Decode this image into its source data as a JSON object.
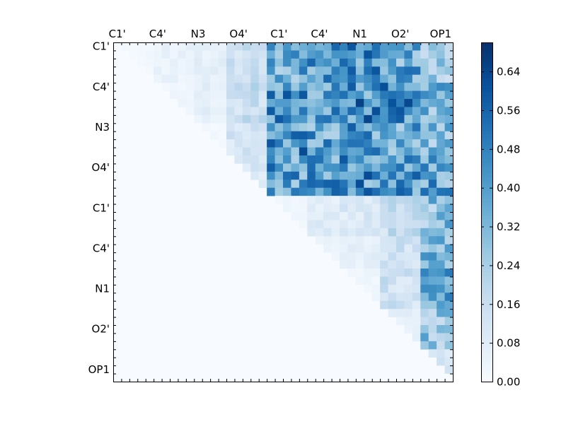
{
  "chart_data": {
    "type": "heatmap",
    "n": 42,
    "x_tick_labels": [
      "C1'",
      "C4'",
      "N3",
      "O4'",
      "C1'",
      "C4'",
      "N1",
      "O2'",
      "OP1"
    ],
    "y_tick_labels": [
      "C1'",
      "C4'",
      "N3",
      "O4'",
      "C1'",
      "C4'",
      "N1",
      "O2'",
      "OP1"
    ],
    "label_index_positions": [
      0.5,
      5.5,
      10.5,
      15.5,
      20.5,
      25.5,
      30.5,
      35.5,
      40.5
    ],
    "colorbar": {
      "min": 0.0,
      "max": 0.7,
      "tick_values": [
        0.0,
        0.08,
        0.16,
        0.24,
        0.32,
        0.4,
        0.48,
        0.56,
        0.64
      ],
      "tick_labels": [
        "0.00",
        "0.08",
        "0.16",
        "0.24",
        "0.32",
        "0.40",
        "0.48",
        "0.56",
        "0.64"
      ]
    },
    "colormap": [
      "#f7fbff",
      "#deebf7",
      "#c6dbef",
      "#9ecae1",
      "#6baed6",
      "#4292c6",
      "#2171b5",
      "#08519c",
      "#08306b"
    ],
    "block_means": [
      [
        0.02,
        0.05,
        0.06,
        0.14,
        0.36,
        0.4,
        0.42,
        0.38,
        0.24
      ],
      [
        0.0,
        0.03,
        0.06,
        0.16,
        0.44,
        0.42,
        0.46,
        0.44,
        0.32
      ],
      [
        0.0,
        0.0,
        0.02,
        0.12,
        0.44,
        0.38,
        0.4,
        0.36,
        0.3
      ],
      [
        0.0,
        0.0,
        0.0,
        0.1,
        0.4,
        0.4,
        0.44,
        0.42,
        0.38
      ],
      [
        0.0,
        0.0,
        0.0,
        0.0,
        0.03,
        0.08,
        0.1,
        0.16,
        0.3
      ],
      [
        0.0,
        0.0,
        0.0,
        0.0,
        0.0,
        0.04,
        0.06,
        0.14,
        0.32
      ],
      [
        0.0,
        0.0,
        0.0,
        0.0,
        0.0,
        0.0,
        0.03,
        0.14,
        0.36
      ],
      [
        0.0,
        0.0,
        0.0,
        0.0,
        0.0,
        0.0,
        0.0,
        0.06,
        0.28
      ],
      [
        0.0,
        0.0,
        0.0,
        0.0,
        0.0,
        0.0,
        0.0,
        0.0,
        0.1
      ]
    ],
    "values_triangle": "upper",
    "grid": false
  }
}
